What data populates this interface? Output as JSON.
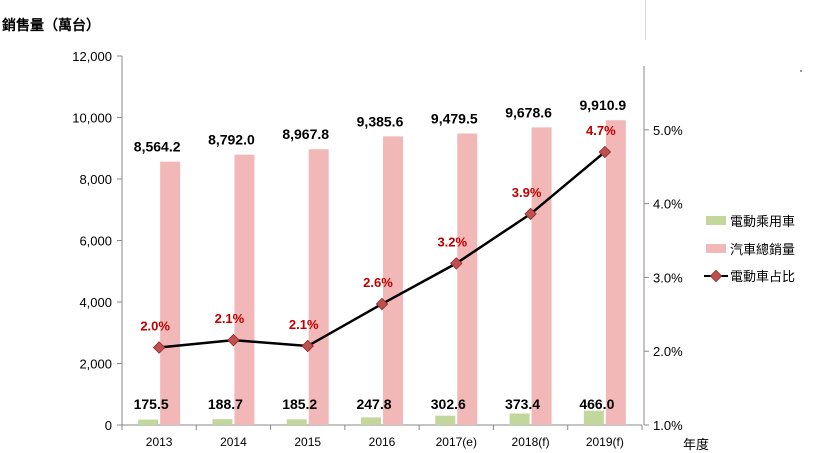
{
  "chart_data": {
    "type": "bar",
    "ylabel": "銷售量（萬台）",
    "xlabel": "年度",
    "categories": [
      "2013",
      "2014",
      "2015",
      "2016",
      "2017(e)",
      "2018(f)",
      "2019(f)"
    ],
    "ylim": [
      0,
      12000
    ],
    "y_ticks": [
      "0",
      "2,000",
      "4,000",
      "6,000",
      "8,000",
      "10,000",
      "12,000"
    ],
    "y2lim": [
      1.0,
      6.0
    ],
    "y2_ticks": [
      "1.0%",
      "2.0%",
      "3.0%",
      "4.0%",
      "5.0%"
    ],
    "series": [
      {
        "name": "電動乘用車",
        "type": "bar",
        "axis": "left",
        "color": "#c3d69b",
        "values": [
          175.5,
          188.7,
          185.2,
          247.8,
          302.6,
          373.4,
          466.0
        ],
        "labels": [
          "175.5",
          "188.7",
          "185.2",
          "247.8",
          "302.6",
          "373.4",
          "466.0"
        ]
      },
      {
        "name": "汽車總銷量",
        "type": "bar",
        "axis": "left",
        "color": "#f2b8b8",
        "values": [
          8564.2,
          8792.0,
          8967.8,
          9385.6,
          9479.5,
          9678.6,
          9910.9
        ],
        "labels": [
          "8,564.2",
          "8,792.0",
          "8,967.8",
          "9,385.6",
          "9,479.5",
          "9,678.6",
          "9,910.9"
        ]
      },
      {
        "name": "電動車占比",
        "type": "line",
        "axis": "right",
        "color": "#000000",
        "marker_color": "#c0504d",
        "label_color": "#c00000",
        "values": [
          2.05,
          2.15,
          2.07,
          2.64,
          3.19,
          3.86,
          4.7
        ],
        "labels": [
          "2.0%",
          "2.1%",
          "2.1%",
          "2.6%",
          "3.2%",
          "3.9%",
          "4.7%"
        ]
      }
    ],
    "legend_position": "right",
    "grid": false
  }
}
